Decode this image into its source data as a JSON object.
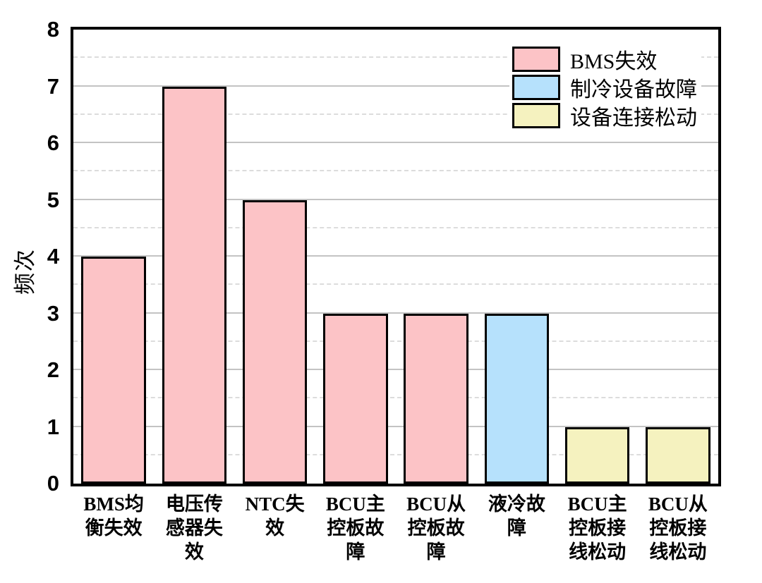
{
  "chart_data": {
    "type": "bar",
    "title": "",
    "xlabel": "",
    "ylabel": "频次",
    "ylim": [
      0,
      8
    ],
    "yticks": [
      0,
      1,
      2,
      3,
      4,
      5,
      6,
      7,
      8
    ],
    "grid": {
      "major_lines": "solid horizontal at integers 1-7",
      "minor_lines": "dashed horizontal at half-integers 0.5-7.5"
    },
    "legend_position": "top-right inside plot",
    "categories": [
      "BMS均衡失效",
      "电压传感器失效",
      "NTC失效",
      "BCU主控板故障",
      "BCU从控板故障",
      "液冷故障",
      "BCU主控板接线松动",
      "BCU从控板接线松动"
    ],
    "categories_wrapped": [
      "BMS均\n衡失效",
      "电压传\n感器失\n效",
      "NTC失\n效",
      "BCU主\n控板故\n障",
      "BCU从\n控板故\n障",
      "液冷故\n障",
      "BCU主\n控板接\n线松动",
      "BCU从\n控板接\n线松动"
    ],
    "values": [
      4,
      7,
      5,
      3,
      3,
      3,
      1,
      1
    ],
    "bar_series": [
      "BMS失效",
      "BMS失效",
      "BMS失效",
      "BMS失效",
      "BMS失效",
      "制冷设备故障",
      "设备连接松动",
      "设备连接松动"
    ],
    "legend": [
      {
        "label": "BMS失效",
        "color": "#fcc3c6"
      },
      {
        "label": "制冷设备故障",
        "color": "#b6e1fc"
      },
      {
        "label": "设备连接松动",
        "color": "#f5f2bf"
      }
    ]
  },
  "colors": {
    "background": "#ffffff",
    "axis_frame": "#000000",
    "bar_border": "#000000",
    "grid_major": "#c3c3c3",
    "grid_minor": "#dcdcdc",
    "text": "#000000"
  }
}
